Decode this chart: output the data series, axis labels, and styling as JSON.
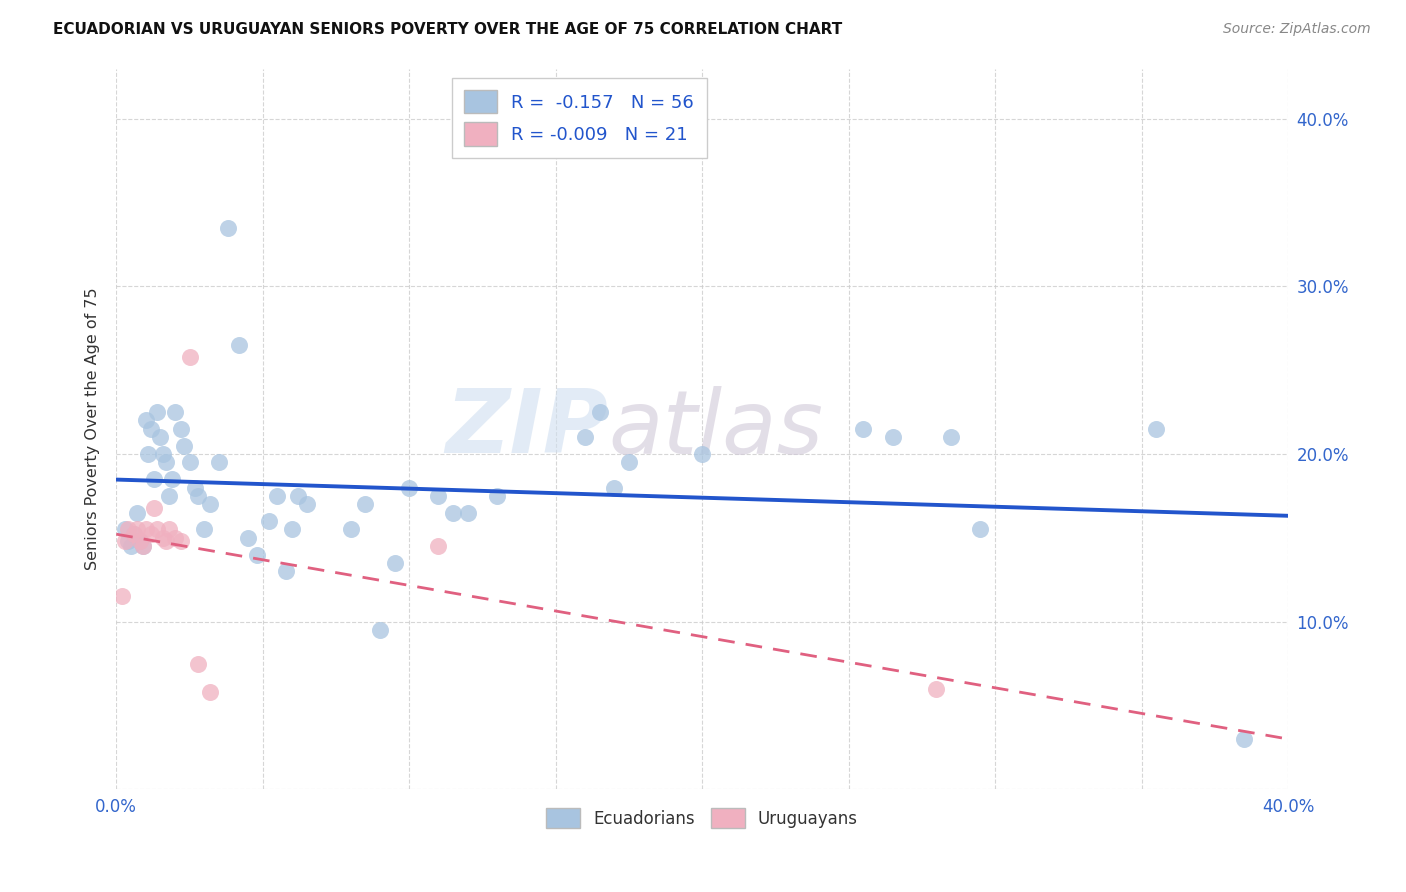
{
  "title": "ECUADORIAN VS URUGUAYAN SENIORS POVERTY OVER THE AGE OF 75 CORRELATION CHART",
  "source": "Source: ZipAtlas.com",
  "ylabel": "Seniors Poverty Over the Age of 75",
  "xlim": [
    0.0,
    0.4
  ],
  "ylim": [
    0.0,
    0.43
  ],
  "background_color": "#ffffff",
  "grid_color": "#cccccc",
  "ecuadorians_color": "#a8c4e0",
  "uruguayans_color": "#f0b0c0",
  "line_blue": "#2255cc",
  "line_pink": "#e06080",
  "watermark_zip": "ZIP",
  "watermark_atlas": "atlas",
  "legend_r_ecu": "R =  -0.157",
  "legend_n_ecu": "N = 56",
  "legend_r_uru": "R = -0.009",
  "legend_n_uru": "N = 21",
  "ecu_x": [
    0.003,
    0.004,
    0.005,
    0.006,
    0.007,
    0.008,
    0.009,
    0.01,
    0.011,
    0.012,
    0.013,
    0.014,
    0.015,
    0.016,
    0.017,
    0.018,
    0.019,
    0.02,
    0.022,
    0.023,
    0.025,
    0.027,
    0.028,
    0.03,
    0.032,
    0.035,
    0.038,
    0.042,
    0.045,
    0.048,
    0.052,
    0.055,
    0.058,
    0.06,
    0.062,
    0.065,
    0.08,
    0.085,
    0.09,
    0.095,
    0.1,
    0.11,
    0.115,
    0.12,
    0.13,
    0.16,
    0.165,
    0.17,
    0.175,
    0.2,
    0.255,
    0.265,
    0.285,
    0.295,
    0.355,
    0.385
  ],
  "ecu_y": [
    0.155,
    0.148,
    0.145,
    0.152,
    0.165,
    0.148,
    0.145,
    0.22,
    0.2,
    0.215,
    0.185,
    0.225,
    0.21,
    0.2,
    0.195,
    0.175,
    0.185,
    0.225,
    0.215,
    0.205,
    0.195,
    0.18,
    0.175,
    0.155,
    0.17,
    0.195,
    0.335,
    0.265,
    0.15,
    0.14,
    0.16,
    0.175,
    0.13,
    0.155,
    0.175,
    0.17,
    0.155,
    0.17,
    0.095,
    0.135,
    0.18,
    0.175,
    0.165,
    0.165,
    0.175,
    0.21,
    0.225,
    0.18,
    0.195,
    0.2,
    0.215,
    0.21,
    0.21,
    0.155,
    0.215,
    0.03
  ],
  "uru_x": [
    0.002,
    0.003,
    0.004,
    0.006,
    0.007,
    0.008,
    0.009,
    0.01,
    0.012,
    0.013,
    0.014,
    0.016,
    0.017,
    0.018,
    0.02,
    0.022,
    0.025,
    0.028,
    0.032,
    0.11,
    0.28
  ],
  "uru_y": [
    0.115,
    0.148,
    0.155,
    0.152,
    0.155,
    0.148,
    0.145,
    0.155,
    0.152,
    0.168,
    0.155,
    0.15,
    0.148,
    0.155,
    0.15,
    0.148,
    0.258,
    0.075,
    0.058,
    0.145,
    0.06
  ]
}
